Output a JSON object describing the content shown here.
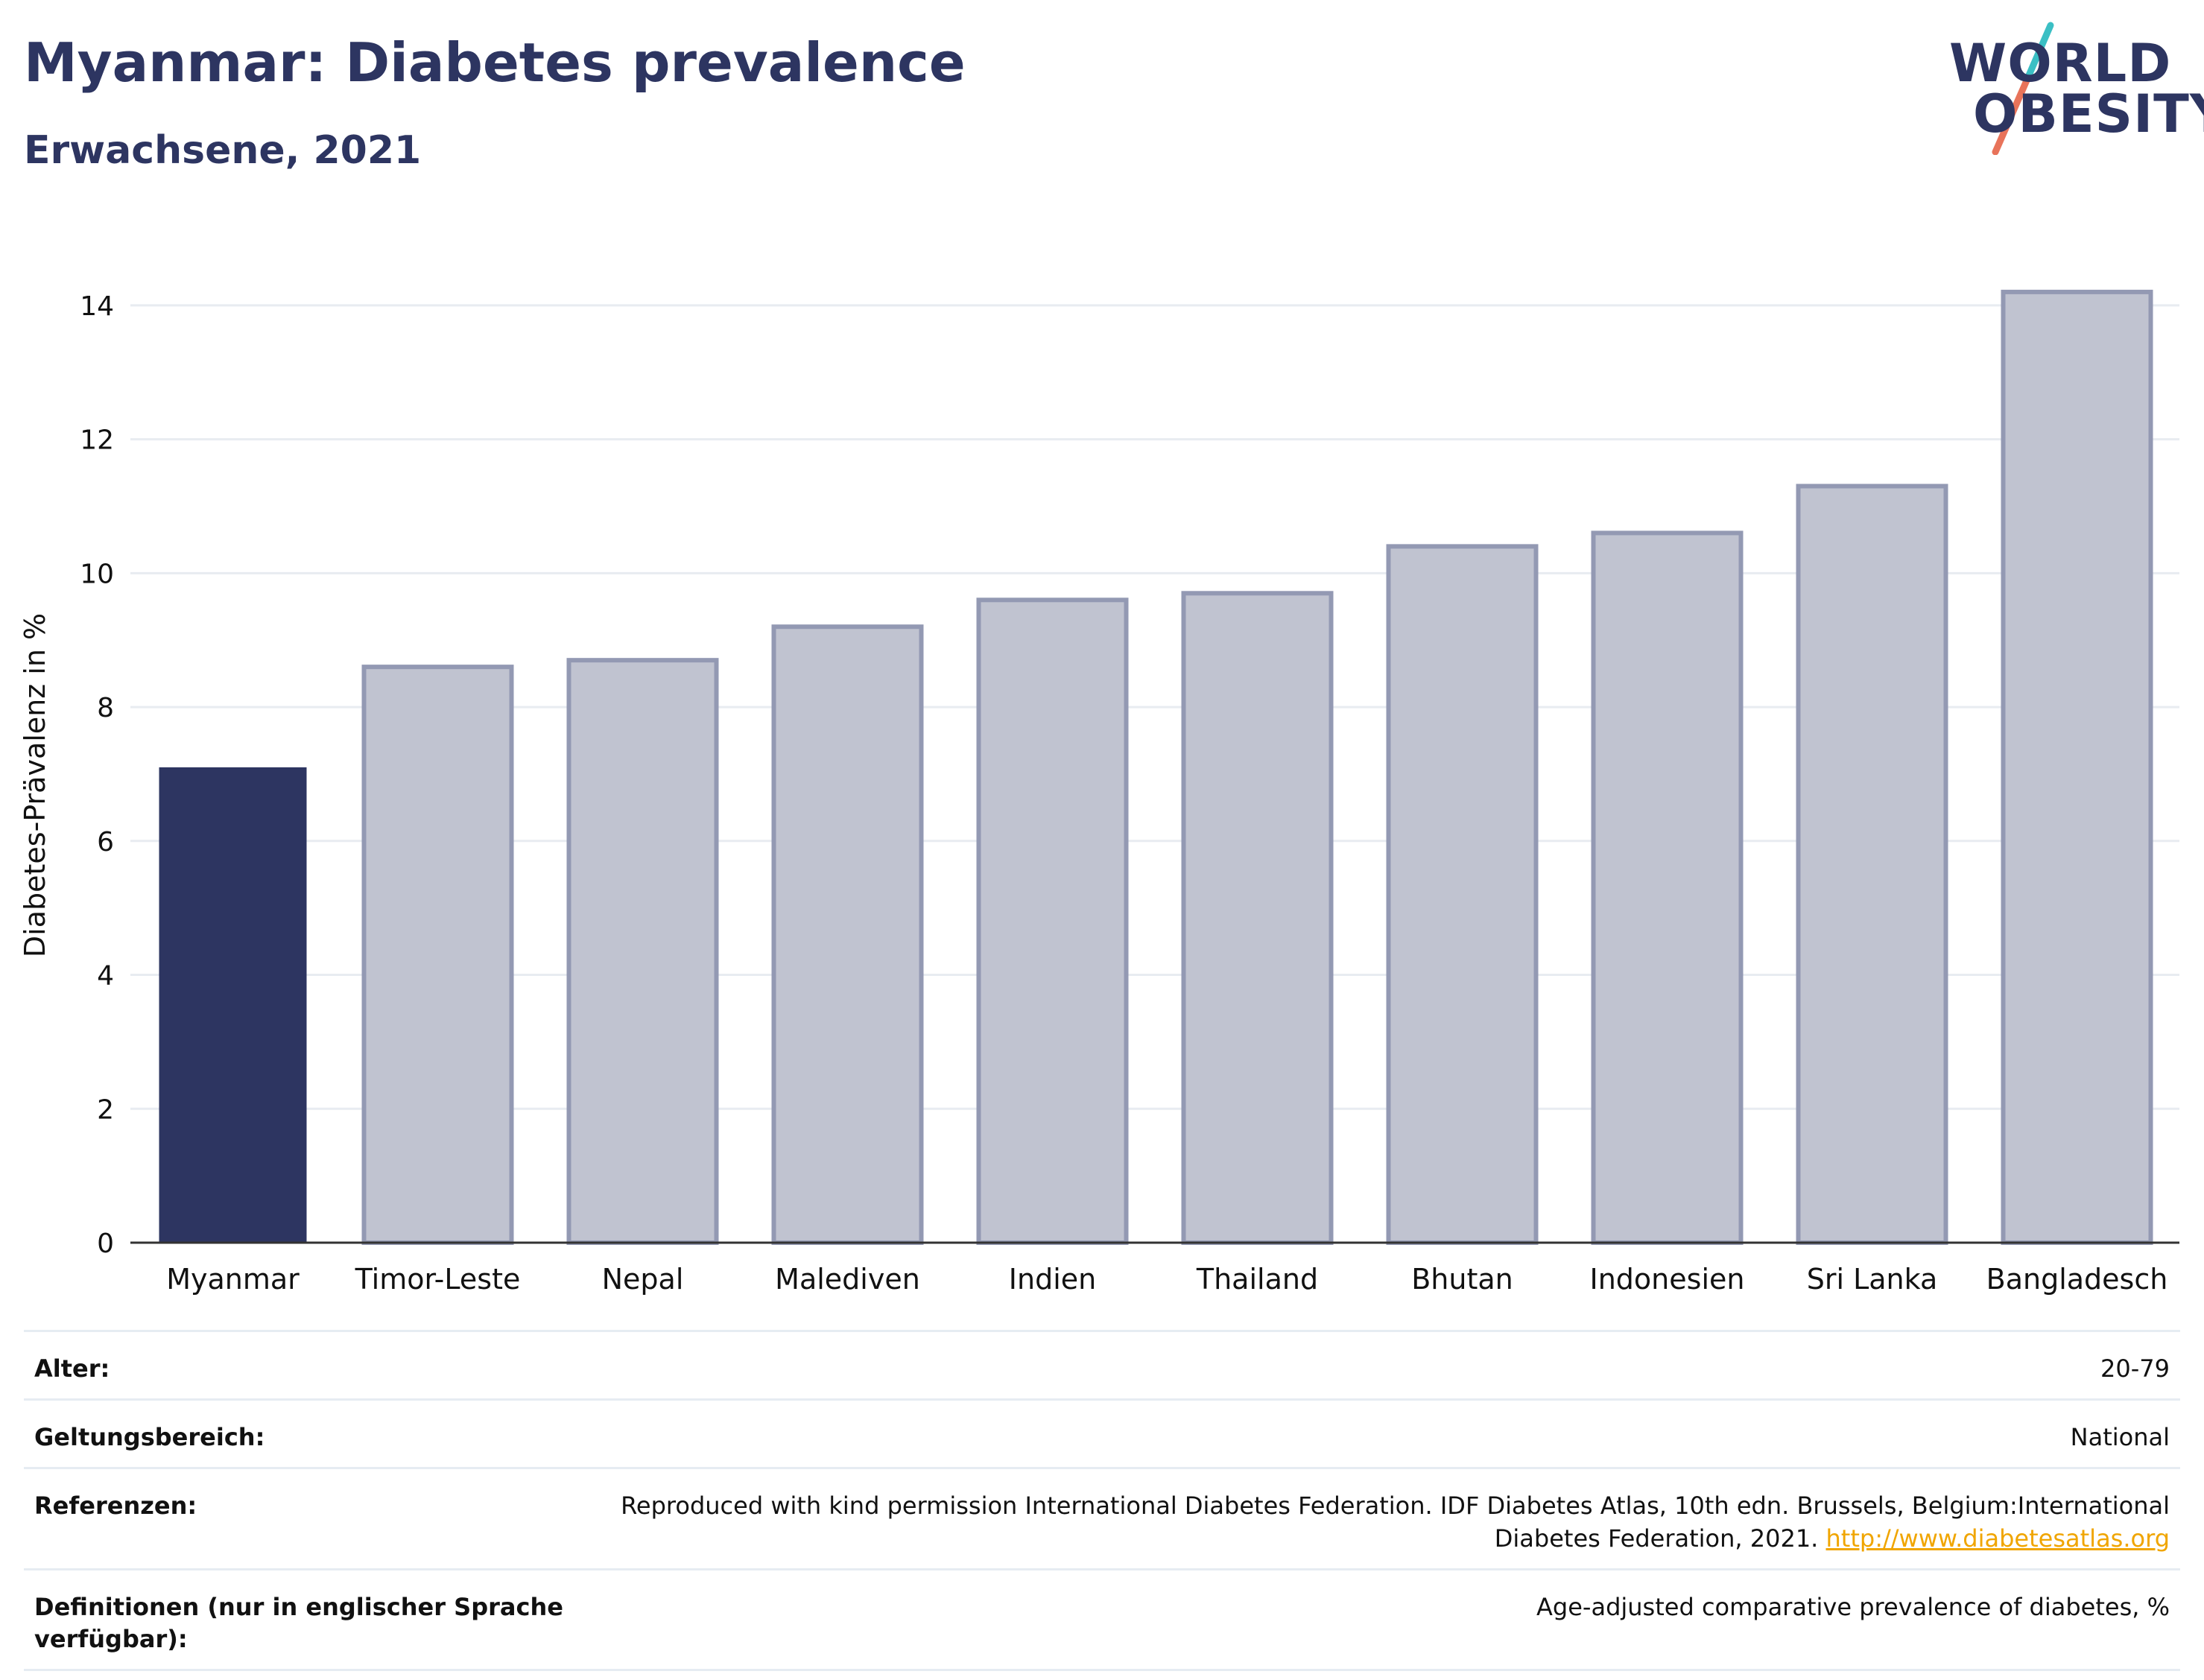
{
  "header": {
    "title": "Myanmar: Diabetes prevalence",
    "subtitle": "Erwachsene, 2021"
  },
  "logo": {
    "line1": "WORLD",
    "line2": "OBESITY",
    "colors": {
      "text": "#2d3561",
      "slash_top": "#3bbfc4",
      "slash_bottom": "#e8735a"
    }
  },
  "chart_data": {
    "type": "bar",
    "title": "",
    "xlabel": "",
    "ylabel": "Diabetes-Prävalenz in %",
    "categories": [
      "Myanmar",
      "Timor-Leste",
      "Nepal",
      "Malediven",
      "Indien",
      "Thailand",
      "Bhutan",
      "Indonesien",
      "Sri Lanka",
      "Bangladesch"
    ],
    "values": [
      7.1,
      8.6,
      8.7,
      9.2,
      9.6,
      9.7,
      10.4,
      10.6,
      11.3,
      14.2
    ],
    "highlight": "Myanmar",
    "ylim": [
      0,
      15
    ],
    "yticks": [
      0,
      2,
      4,
      6,
      8,
      10,
      12,
      14
    ],
    "grid": true,
    "colors": {
      "highlight": "#2d3561",
      "bar_fill": "#c0c3d0",
      "bar_stroke": "#9399b3",
      "grid": "#e8ecf1",
      "axis": "#333333"
    }
  },
  "meta": {
    "rows": [
      {
        "label": "Alter:",
        "value": "20-79"
      },
      {
        "label": "Geltungsbereich:",
        "value": "National"
      },
      {
        "label": "Referenzen:",
        "value": "Reproduced with kind permission International Diabetes Federation.  IDF Diabetes Atlas, 10th edn. Brussels, Belgium:International Diabetes Federation, 2021. ",
        "link": "http://www.diabetesatlas.org"
      },
      {
        "label": "Definitionen (nur in englischer Sprache verfügbar):",
        "value": "Age-adjusted comparative prevalence of diabetes, %"
      }
    ]
  }
}
